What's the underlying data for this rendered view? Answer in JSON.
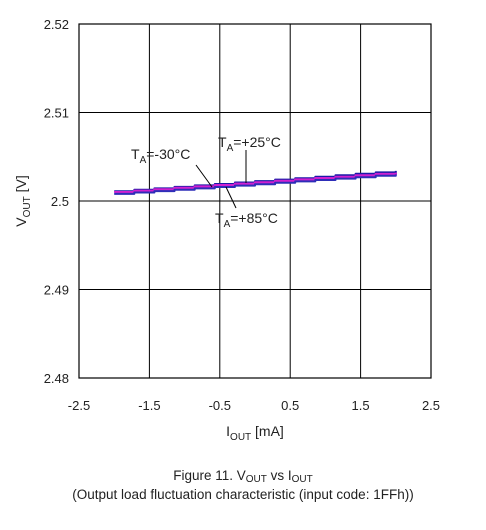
{
  "chart_data": {
    "type": "line",
    "xlabel": {
      "main": "I",
      "sub": "OUT",
      "unit": " [mA]"
    },
    "ylabel": {
      "main": "V",
      "sub": "OUT",
      "unit": " [V]"
    },
    "xlim": [
      -2.5,
      2.5
    ],
    "ylim": [
      2.48,
      2.52
    ],
    "xticks": [
      "-2.5",
      "-1.5",
      "-0.5",
      "0.5",
      "1.5",
      "2.5"
    ],
    "yticks": [
      "2.52",
      "2.51",
      "2.5",
      "2.49",
      "2.48"
    ],
    "grid": true,
    "series": [
      {
        "name": "TA=-30°C",
        "color": "#1a1aa8",
        "x": [
          -2.0,
          2.0
        ],
        "y": [
          2.5011,
          2.5034
        ]
      },
      {
        "name": "TA=+25°C",
        "color": "#d020d0",
        "x": [
          -2.0,
          2.0
        ],
        "y": [
          2.501,
          2.5032
        ]
      },
      {
        "name": "TA=+85°C",
        "color": "#2e2eb8",
        "x": [
          -2.0,
          2.0
        ],
        "y": [
          2.5008,
          2.503
        ]
      }
    ],
    "annotations": [
      {
        "main": "T",
        "sub": "A",
        "rest": "=-30°C"
      },
      {
        "main": "T",
        "sub": "A",
        "rest": "=+25°C"
      },
      {
        "main": "T",
        "sub": "A",
        "rest": "=+85°C"
      }
    ]
  },
  "caption": {
    "prefix": "Figure 11. V",
    "sub1": "OUT",
    "mid": " vs I",
    "sub2": "OUT",
    "subtitle": "(Output load fluctuation characteristic (input code: 1FFh))"
  }
}
